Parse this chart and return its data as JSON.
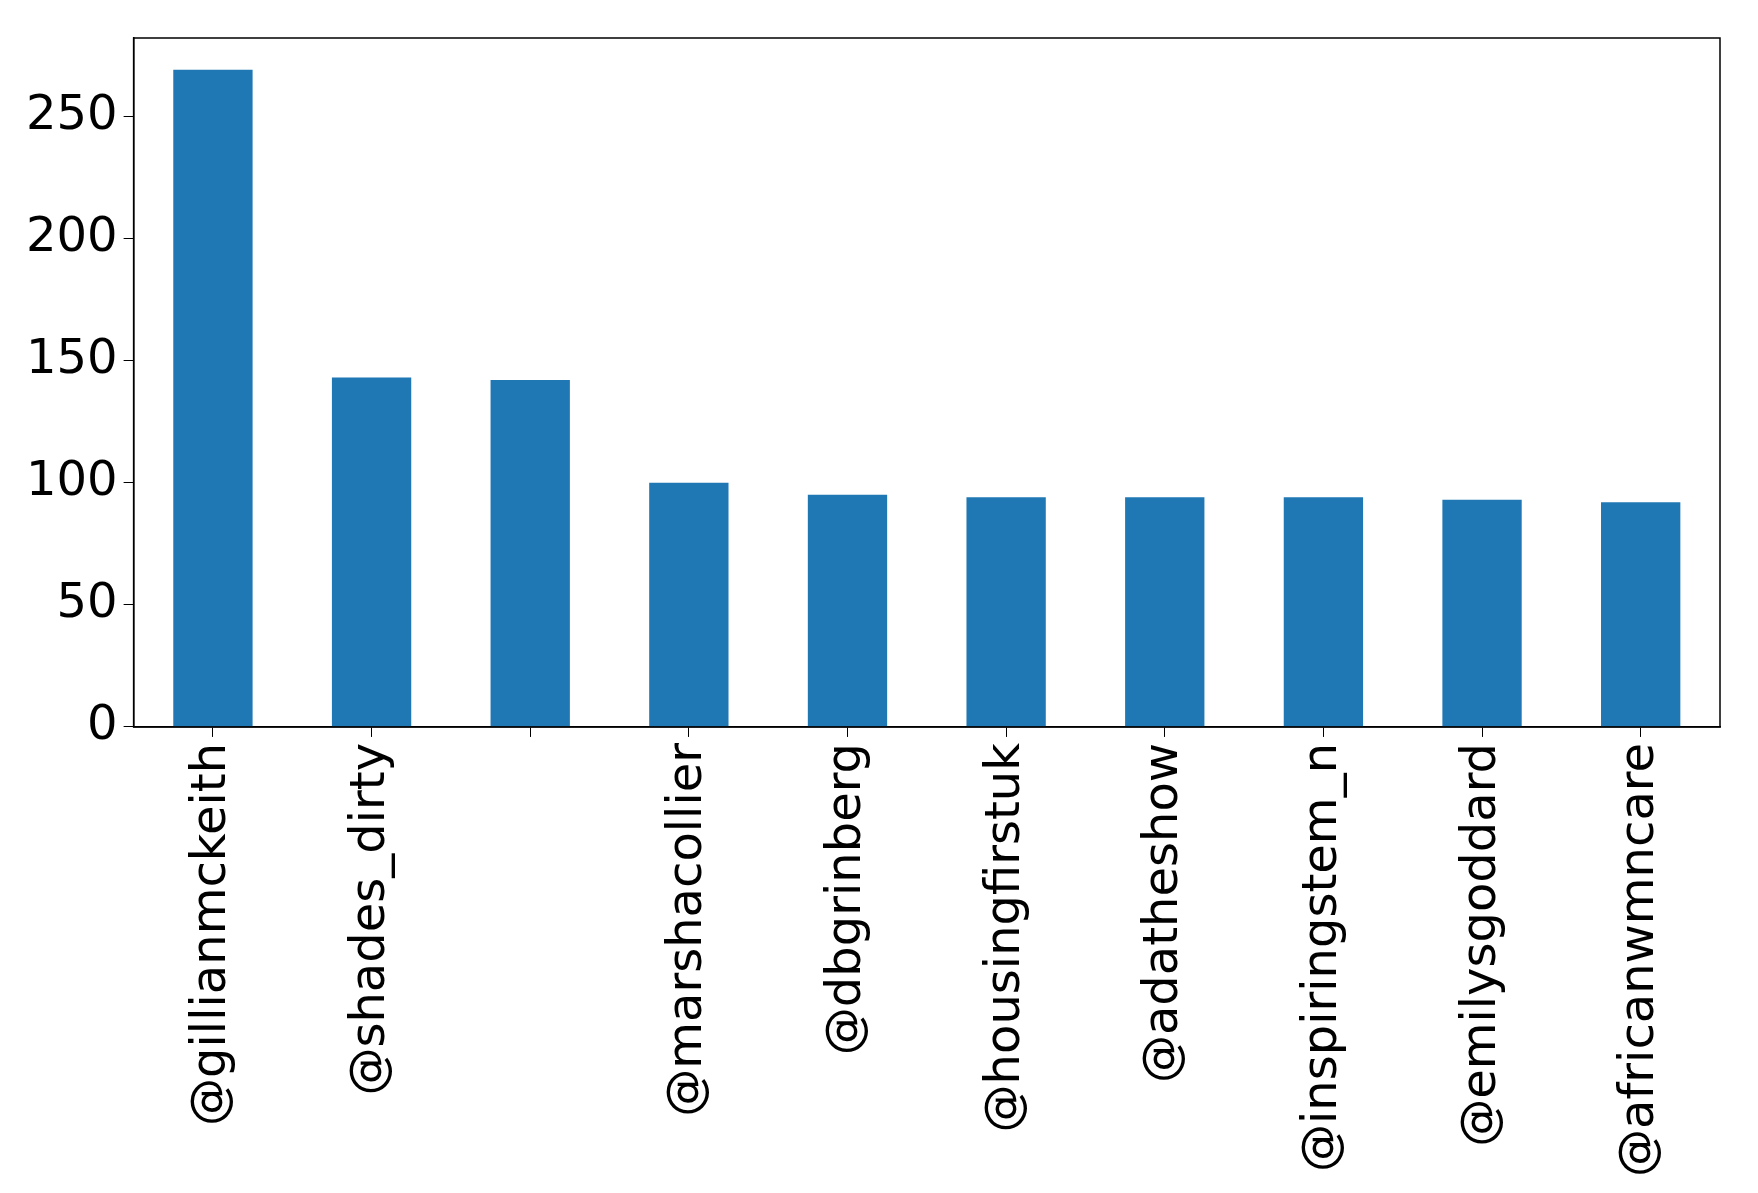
{
  "chart_data": {
    "type": "bar",
    "categories": [
      "@gillianmckeith",
      "@shades_dirty",
      null,
      "@marshacollier",
      "@dbgrinberg",
      "@housingfirstuk",
      "@adatheshow",
      "@inspiringstem_n",
      "@emilysgoddard",
      "@africanwmncare"
    ],
    "values": [
      269,
      143,
      142,
      100,
      95,
      94,
      94,
      94,
      93,
      92
    ],
    "color": "#1f77b4",
    "ylim": [
      0,
      282
    ],
    "yticks": [
      0,
      50,
      100,
      150,
      200,
      250
    ],
    "grid": false,
    "legend": false
  }
}
